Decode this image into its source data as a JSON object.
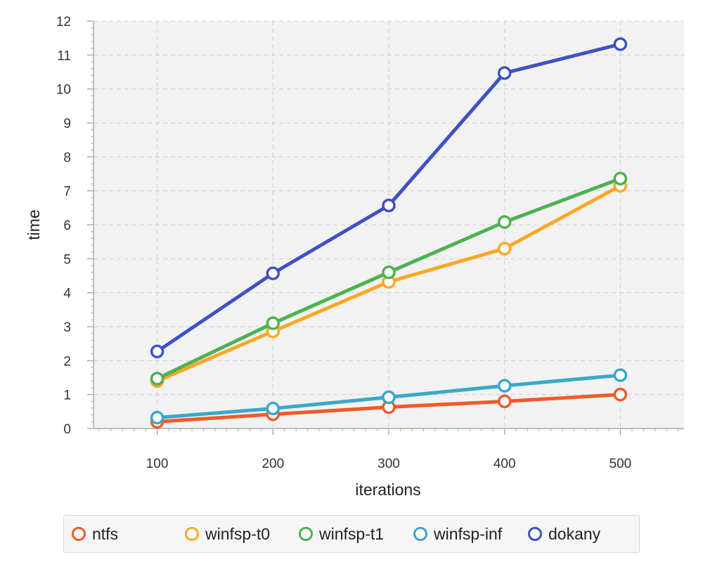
{
  "chart_data": {
    "type": "line",
    "x": [
      100,
      200,
      300,
      400,
      500
    ],
    "xlabel": "iterations",
    "ylabel": "time",
    "xlim": [
      45,
      555
    ],
    "ylim": [
      0,
      12
    ],
    "x_ticks": [
      100,
      200,
      300,
      400,
      500
    ],
    "y_ticks": [
      0,
      1,
      2,
      3,
      4,
      5,
      6,
      7,
      8,
      9,
      10,
      11,
      12
    ],
    "grid": true,
    "legend_position": "bottom",
    "series": [
      {
        "name": "ntfs",
        "color": "#f05a2a",
        "values": [
          0.2,
          0.42,
          0.63,
          0.8,
          1.0
        ]
      },
      {
        "name": "winfsp-t0",
        "color": "#f9a825",
        "values": [
          1.4,
          2.86,
          4.32,
          5.3,
          7.15
        ]
      },
      {
        "name": "winfsp-t1",
        "color": "#4db24f",
        "values": [
          1.47,
          3.1,
          4.6,
          6.08,
          7.36
        ]
      },
      {
        "name": "winfsp-inf",
        "color": "#3ba8c9",
        "values": [
          0.32,
          0.59,
          0.92,
          1.26,
          1.57
        ]
      },
      {
        "name": "dokany",
        "color": "#3f51c4",
        "values": [
          2.27,
          4.57,
          6.57,
          10.47,
          11.32
        ]
      }
    ]
  }
}
